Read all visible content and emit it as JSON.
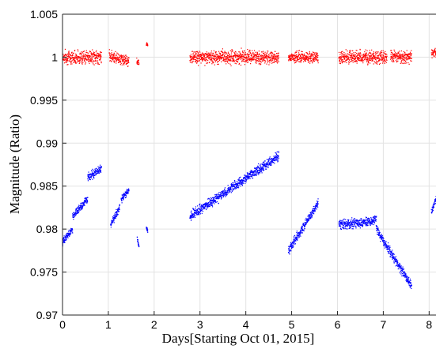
{
  "chart_data": {
    "type": "scatter",
    "title": "",
    "xlabel": "Days[Starting Oct 01, 2015]",
    "ylabel": "Magnitude (Ratio)",
    "xlim": [
      0,
      8.15
    ],
    "ylim": [
      0.97,
      1.005
    ],
    "xticks": [
      "0",
      "1",
      "2",
      "3",
      "4",
      "5",
      "6",
      "7",
      "8"
    ],
    "yticks": [
      "0.97",
      "0.975",
      "0.98",
      "0.985",
      "0.99",
      "0.995",
      "1",
      "1.005"
    ],
    "grid": true,
    "legend": "none",
    "series": [
      {
        "color": "#ff0000",
        "segments": [
          {
            "x": [
              0.0,
              0.85
            ],
            "y": [
              1.0,
              1.0
            ],
            "noise": 0.0011
          },
          {
            "x": [
              1.02,
              1.45
            ],
            "y": [
              1.0002,
              0.9995
            ],
            "noise": 0.0009
          },
          {
            "x": [
              1.62,
              1.67
            ],
            "y": [
              0.9995,
              0.9995
            ],
            "noise": 0.0006
          },
          {
            "x": [
              1.83,
              1.86
            ],
            "y": [
              1.0015,
              1.0015
            ],
            "noise": 0.0003
          },
          {
            "x": [
              2.78,
              4.72
            ],
            "y": [
              1.0,
              1.0
            ],
            "noise": 0.0011
          },
          {
            "x": [
              4.93,
              5.58
            ],
            "y": [
              1.0,
              1.0
            ],
            "noise": 0.0009
          },
          {
            "x": [
              6.03,
              7.08
            ],
            "y": [
              1.0,
              1.0
            ],
            "noise": 0.0011
          },
          {
            "x": [
              7.16,
              7.62
            ],
            "y": [
              1.0,
              1.0
            ],
            "noise": 0.001
          },
          {
            "x": [
              8.05,
              8.15
            ],
            "y": [
              1.0005,
              1.0005
            ],
            "noise": 0.0008
          }
        ]
      },
      {
        "color": "#0000ff",
        "segments": [
          {
            "x": [
              0.0,
              0.22
            ],
            "y": [
              0.9785,
              0.98
            ],
            "noise": 0.0006
          },
          {
            "x": [
              0.22,
              0.55
            ],
            "y": [
              0.9815,
              0.9835
            ],
            "noise": 0.0007
          },
          {
            "x": [
              0.55,
              0.85
            ],
            "y": [
              0.986,
              0.987
            ],
            "noise": 0.0008
          },
          {
            "x": [
              1.05,
              1.25
            ],
            "y": [
              0.9805,
              0.9825
            ],
            "noise": 0.0007
          },
          {
            "x": [
              1.28,
              1.45
            ],
            "y": [
              0.9835,
              0.9845
            ],
            "noise": 0.0006
          },
          {
            "x": [
              1.63,
              1.67
            ],
            "y": [
              0.979,
              0.978
            ],
            "noise": 0.0004
          },
          {
            "x": [
              1.83,
              1.86
            ],
            "y": [
              0.9802,
              0.9798
            ],
            "noise": 0.0003
          },
          {
            "x": [
              2.78,
              4.72
            ],
            "y": [
              0.9815,
              0.9885
            ],
            "noise": 0.0008
          },
          {
            "x": [
              4.93,
              5.58
            ],
            "y": [
              0.9775,
              0.983
            ],
            "noise": 0.0008
          },
          {
            "x": [
              6.03,
              6.85
            ],
            "y": [
              0.9805,
              0.981
            ],
            "noise": 0.0008
          },
          {
            "x": [
              6.85,
              7.62
            ],
            "y": [
              0.98,
              0.9733
            ],
            "noise": 0.0008
          },
          {
            "x": [
              8.05,
              8.15
            ],
            "y": [
              0.982,
              0.9835
            ],
            "noise": 0.0006
          }
        ]
      }
    ]
  }
}
